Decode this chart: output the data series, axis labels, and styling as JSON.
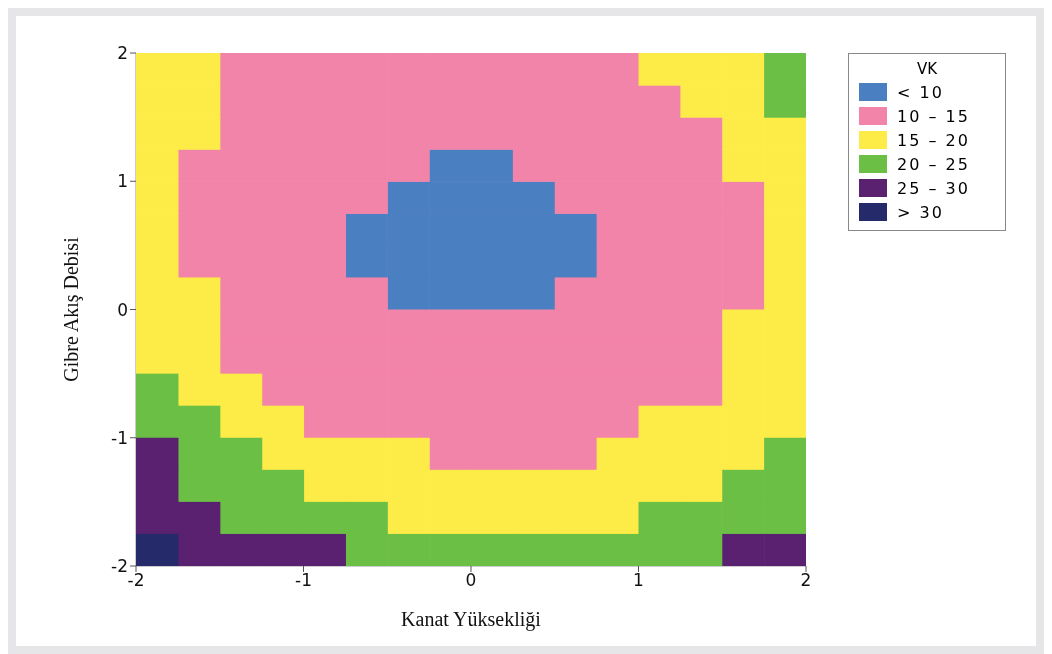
{
  "chart_data": {
    "type": "scatter",
    "xlabel": "Kanat Yüksekliği",
    "ylabel": "Gibre Akış Debisi",
    "legend_title": "VK",
    "legend": "right",
    "marker": "square",
    "xlim": [
      -2,
      2
    ],
    "ylim": [
      -2,
      2
    ],
    "xticks": [
      -2,
      -1,
      0,
      1,
      2
    ],
    "yticks": [
      -2,
      -1,
      0,
      1,
      2
    ],
    "series": [
      {
        "name": "< 10",
        "color": "#4a7fc1",
        "x": [
          -0.125,
          0.125,
          -0.375,
          -0.125,
          0.125,
          0.375,
          -0.625,
          -0.375,
          -0.125,
          0.125,
          0.375,
          0.625,
          -0.625,
          -0.375,
          -0.125,
          0.125,
          0.375,
          0.625,
          -0.375,
          -0.125,
          0.125,
          0.375
        ],
        "values": [
          1.125,
          1.125,
          0.875,
          0.875,
          0.875,
          0.875,
          0.625,
          0.625,
          0.625,
          0.625,
          0.625,
          0.625,
          0.375,
          0.375,
          0.375,
          0.375,
          0.375,
          0.375,
          0.125,
          0.125,
          0.125,
          0.125
        ]
      },
      {
        "name": "10 – 15",
        "color": "#f283a9",
        "x": [
          -1.375,
          -1.125,
          -0.875,
          -0.625,
          -0.375,
          -0.125,
          0.125,
          0.375,
          0.625,
          0.875,
          -1.375,
          -1.125,
          -0.875,
          -0.625,
          -0.375,
          -0.125,
          0.125,
          0.375,
          0.625,
          0.875,
          1.125,
          -1.375,
          -1.125,
          -0.875,
          -0.625,
          -0.375,
          -0.125,
          0.125,
          0.375,
          0.625,
          0.875,
          1.125,
          1.375,
          -1.625,
          -1.375,
          -1.125,
          -0.875,
          -0.625,
          -0.375,
          0.375,
          0.625,
          0.875,
          1.125,
          1.375,
          -1.625,
          -1.375,
          -1.125,
          -0.875,
          -0.625,
          0.625,
          0.875,
          1.125,
          1.375,
          1.625,
          -1.625,
          -1.375,
          -1.125,
          -0.875,
          0.875,
          1.125,
          1.375,
          1.625,
          -1.625,
          -1.375,
          -1.125,
          -0.875,
          0.875,
          1.125,
          1.375,
          1.625,
          -1.375,
          -1.125,
          -0.875,
          -0.625,
          0.625,
          0.875,
          1.125,
          1.375,
          1.625,
          -1.375,
          -1.125,
          -0.875,
          -0.625,
          -0.375,
          -0.125,
          0.125,
          0.375,
          0.625,
          0.875,
          1.125,
          1.375,
          -1.375,
          -1.125,
          -0.875,
          -0.625,
          -0.375,
          -0.125,
          0.125,
          0.375,
          0.625,
          0.875,
          1.125,
          1.375,
          -1.125,
          -0.875,
          -0.625,
          -0.375,
          -0.125,
          0.125,
          0.375,
          0.625,
          0.875,
          1.125,
          1.375,
          -0.875,
          -0.625,
          -0.375,
          -0.125,
          0.125,
          0.375,
          0.625,
          0.875,
          -0.125,
          0.125,
          0.375,
          0.625
        ],
        "values": [
          1.875,
          1.875,
          1.875,
          1.875,
          1.875,
          1.875,
          1.875,
          1.875,
          1.875,
          1.875,
          1.625,
          1.625,
          1.625,
          1.625,
          1.625,
          1.625,
          1.625,
          1.625,
          1.625,
          1.625,
          1.625,
          1.375,
          1.375,
          1.375,
          1.375,
          1.375,
          1.375,
          1.375,
          1.375,
          1.375,
          1.375,
          1.375,
          1.375,
          1.125,
          1.125,
          1.125,
          1.125,
          1.125,
          1.125,
          1.125,
          1.125,
          1.125,
          1.125,
          1.125,
          0.875,
          0.875,
          0.875,
          0.875,
          0.875,
          0.875,
          0.875,
          0.875,
          0.875,
          0.875,
          0.625,
          0.625,
          0.625,
          0.625,
          0.625,
          0.625,
          0.625,
          0.625,
          0.375,
          0.375,
          0.375,
          0.375,
          0.375,
          0.375,
          0.375,
          0.375,
          0.125,
          0.125,
          0.125,
          0.125,
          0.125,
          0.125,
          0.125,
          0.125,
          0.125,
          -0.125,
          -0.125,
          -0.125,
          -0.125,
          -0.125,
          -0.125,
          -0.125,
          -0.125,
          -0.125,
          -0.125,
          -0.125,
          -0.125,
          -0.375,
          -0.375,
          -0.375,
          -0.375,
          -0.375,
          -0.375,
          -0.375,
          -0.375,
          -0.375,
          -0.375,
          -0.375,
          -0.375,
          -0.625,
          -0.625,
          -0.625,
          -0.625,
          -0.625,
          -0.625,
          -0.625,
          -0.625,
          -0.625,
          -0.625,
          -0.625,
          -0.875,
          -0.875,
          -0.875,
          -0.875,
          -0.875,
          -0.875,
          -0.875,
          -0.875,
          -1.125,
          -1.125,
          -1.125,
          -1.125
        ]
      },
      {
        "name": "15 – 20",
        "color": "#fdec47",
        "x": [
          -1.875,
          -1.625,
          1.125,
          1.375,
          1.625,
          -1.875,
          -1.625,
          1.375,
          1.625,
          -1.875,
          -1.625,
          1.625,
          1.875,
          -1.875,
          1.625,
          1.875,
          -1.875,
          1.875,
          -1.875,
          1.875,
          -1.875,
          1.875,
          -1.875,
          -1.625,
          1.875,
          -1.875,
          -1.625,
          1.625,
          1.875,
          -1.875,
          -1.625,
          1.625,
          1.875,
          -1.625,
          -1.375,
          1.625,
          1.875,
          -1.375,
          -1.125,
          1.125,
          1.375,
          1.625,
          1.875,
          -1.125,
          -0.875,
          -0.625,
          -0.375,
          0.875,
          1.125,
          1.375,
          1.625,
          -0.875,
          -0.625,
          -0.375,
          -0.125,
          0.125,
          0.375,
          0.625,
          0.875,
          1.125,
          1.375,
          -0.375,
          -0.125,
          0.125,
          0.375,
          0.625,
          0.875
        ],
        "values": [
          1.875,
          1.875,
          1.875,
          1.875,
          1.875,
          1.625,
          1.625,
          1.625,
          1.625,
          1.375,
          1.375,
          1.375,
          1.375,
          1.125,
          1.125,
          1.125,
          0.875,
          0.875,
          0.625,
          0.625,
          0.375,
          0.375,
          0.125,
          0.125,
          0.125,
          -0.125,
          -0.125,
          -0.125,
          -0.125,
          -0.375,
          -0.375,
          -0.375,
          -0.375,
          -0.625,
          -0.625,
          -0.625,
          -0.625,
          -0.875,
          -0.875,
          -0.875,
          -0.875,
          -0.875,
          -0.875,
          -1.125,
          -1.125,
          -1.125,
          -1.125,
          -1.125,
          -1.125,
          -1.125,
          -1.125,
          -1.375,
          -1.375,
          -1.375,
          -1.375,
          -1.375,
          -1.375,
          -1.375,
          -1.375,
          -1.375,
          -1.375,
          -1.625,
          -1.625,
          -1.625,
          -1.625,
          -1.625,
          -1.625
        ]
      },
      {
        "name": "20 – 25",
        "color": "#6bbf45",
        "x": [
          1.875,
          1.875,
          -1.875,
          -1.875,
          -1.625,
          -1.625,
          -1.375,
          1.875,
          -1.625,
          -1.375,
          -1.125,
          1.625,
          1.875,
          -1.375,
          -1.125,
          -0.875,
          -0.625,
          1.125,
          1.375,
          1.625,
          1.875,
          -0.625,
          -0.375,
          -0.125,
          0.125,
          0.375,
          0.625,
          0.875,
          1.125,
          1.375
        ],
        "values": [
          1.875,
          1.625,
          -0.625,
          -0.875,
          -0.875,
          -1.125,
          -1.125,
          -1.125,
          -1.375,
          -1.375,
          -1.375,
          -1.375,
          -1.375,
          -1.625,
          -1.625,
          -1.625,
          -1.625,
          -1.625,
          -1.625,
          -1.625,
          -1.625,
          -1.875,
          -1.875,
          -1.875,
          -1.875,
          -1.875,
          -1.875,
          -1.875,
          -1.875,
          -1.875
        ]
      },
      {
        "name": "25 – 30",
        "color": "#5a2170",
        "x": [
          -1.875,
          -1.875,
          -1.875,
          -1.625,
          -1.625,
          -1.375,
          -1.125,
          -0.875,
          1.625,
          1.875
        ],
        "values": [
          -1.125,
          -1.375,
          -1.625,
          -1.625,
          -1.875,
          -1.875,
          -1.875,
          -1.875,
          -1.875,
          -1.875
        ]
      },
      {
        "name": "> 30",
        "color": "#252a6b",
        "x": [
          -1.875
        ],
        "values": [
          -1.875
        ]
      }
    ]
  }
}
